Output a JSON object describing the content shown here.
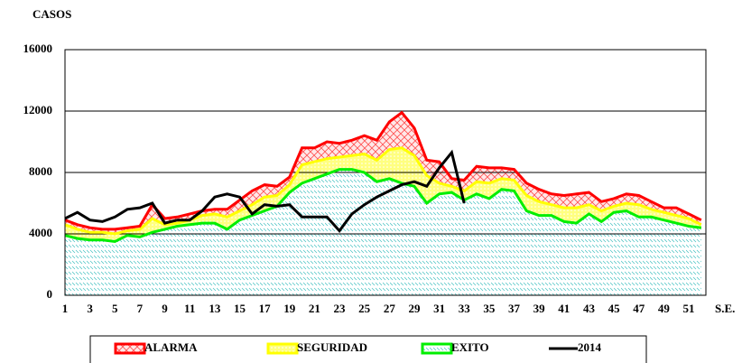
{
  "chart_data": {
    "type": "stacked_area_line",
    "y_label": "CASOS",
    "x_label": "S.E.",
    "categories": [
      1,
      null,
      3,
      null,
      5,
      null,
      7,
      null,
      9,
      null,
      11,
      null,
      13,
      null,
      15,
      null,
      17,
      null,
      19,
      null,
      21,
      null,
      23,
      null,
      25,
      null,
      27,
      null,
      29,
      null,
      31,
      null,
      33,
      null,
      35,
      null,
      37,
      null,
      39,
      null,
      41,
      null,
      43,
      null,
      45,
      null,
      47,
      null,
      49,
      null,
      51,
      null
    ],
    "ylim": [
      0,
      16000
    ],
    "yticks": [
      0,
      4000,
      8000,
      12000,
      16000
    ],
    "grid": true,
    "series": [
      {
        "name": "ALARMA",
        "color": "#ff0000",
        "kind": "area",
        "values": [
          300,
          300,
          300,
          200,
          300,
          200,
          200,
          900,
          400,
          400,
          400,
          300,
          300,
          500,
          700,
          900,
          800,
          600,
          500,
          1100,
          900,
          1100,
          900,
          1000,
          1200,
          1300,
          1800,
          2300,
          1800,
          1000,
          1400,
          500,
          700,
          1000,
          1000,
          700,
          700,
          800,
          800,
          700,
          800,
          900,
          800,
          600,
          500,
          600,
          600,
          500,
          300,
          500,
          300,
          300
        ]
      },
      {
        "name": "SEGURIDAD",
        "color": "#ffff00",
        "kind": "area",
        "values": [
          700,
          600,
          500,
          500,
          500,
          300,
          500,
          900,
          300,
          200,
          300,
          500,
          600,
          800,
          600,
          700,
          900,
          700,
          500,
          1200,
          1100,
          1000,
          800,
          900,
          1200,
          1400,
          1900,
          2300,
          2000,
          1800,
          700,
          400,
          600,
          800,
          1000,
          700,
          700,
          1000,
          900,
          700,
          900,
          1000,
          600,
          700,
          400,
          500,
          800,
          500,
          500,
          500,
          500,
          200
        ]
      },
      {
        "name": "EXITO",
        "color": "#00ee00",
        "kind": "area",
        "values": [
          3900,
          3700,
          3600,
          3600,
          3500,
          3900,
          3800,
          4100,
          4300,
          4500,
          4600,
          4700,
          4700,
          4300,
          4900,
          5200,
          5500,
          5800,
          6700,
          7300,
          7600,
          7900,
          8200,
          8200,
          8000,
          7400,
          7600,
          7300,
          7100,
          6000,
          6600,
          6700,
          6200,
          6600,
          6300,
          6900,
          6800,
          5500,
          5200,
          5200,
          4800,
          4700,
          5300,
          4800,
          5400,
          5500,
          5100,
          5100,
          4900,
          4700,
          4500,
          4400
        ]
      },
      {
        "name": "2014",
        "color": "#000000",
        "kind": "line",
        "values": [
          5000,
          5400,
          4900,
          4800,
          5100,
          5600,
          5700,
          6000,
          4700,
          4900,
          4900,
          5500,
          6400,
          6600,
          6400,
          5300,
          5900,
          5800,
          5900,
          5100,
          5100,
          5100,
          4200,
          5300,
          5900,
          6400,
          6800,
          7200,
          7400,
          7100,
          8300,
          9300,
          6000,
          null,
          null,
          null,
          null,
          null,
          null,
          null,
          null,
          null,
          null,
          null,
          null,
          null,
          null,
          null,
          null,
          null,
          null,
          null
        ]
      }
    ]
  }
}
